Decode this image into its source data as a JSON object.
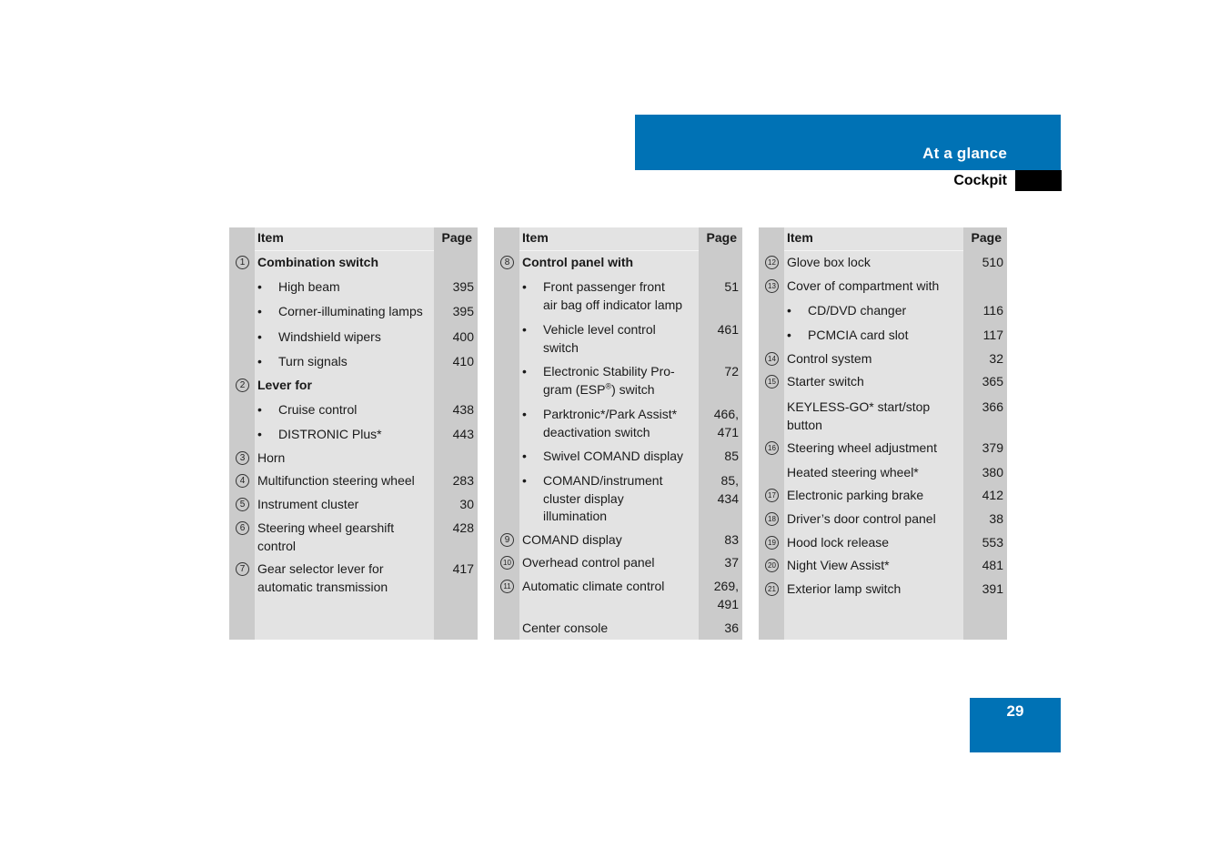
{
  "header": {
    "section": "At a glance",
    "subsection": "Cockpit"
  },
  "page_number": "29",
  "column_headers": {
    "item": "Item",
    "page": "Page"
  },
  "tables": [
    {
      "rows": [
        {
          "num": "1",
          "label": "Combination switch",
          "page": "",
          "bold": true
        },
        {
          "bullet": true,
          "label": "High beam",
          "page": "395"
        },
        {
          "bullet": true,
          "label": "Corner-illuminating lamps",
          "page": "395"
        },
        {
          "bullet": true,
          "label": "Windshield wipers",
          "page": "400"
        },
        {
          "bullet": true,
          "label": "Turn signals",
          "page": "410"
        },
        {
          "num": "2",
          "label": "Lever for",
          "page": "",
          "bold": true
        },
        {
          "bullet": true,
          "label": "Cruise control",
          "page": "438"
        },
        {
          "bullet": true,
          "label": "DISTRONIC Plus*",
          "page": "443"
        },
        {
          "num": "3",
          "label": "Horn",
          "page": ""
        },
        {
          "num": "4",
          "label": "Multifunction steering wheel",
          "page": "283"
        },
        {
          "num": "5",
          "label": "Instrument cluster",
          "page": "30"
        },
        {
          "num": "6",
          "label": "Steering wheel gearshift\ncontrol",
          "page": "428"
        },
        {
          "num": "7",
          "label": "Gear selector lever for\nautomatic transmission",
          "page": "417"
        }
      ]
    },
    {
      "rows": [
        {
          "num": "8",
          "label": "Control panel with",
          "page": "",
          "bold": true
        },
        {
          "bullet": true,
          "label": "Front passenger front\nair bag off indicator lamp",
          "page": "51"
        },
        {
          "bullet": true,
          "label": "Vehicle level control\nswitch",
          "page": "461"
        },
        {
          "bullet": true,
          "label": "Electronic Stability Pro-\ngram (ESP®) switch",
          "page": "72"
        },
        {
          "bullet": true,
          "label": "Parktronic*/Park Assist*\ndeactivation switch",
          "page": "466,\n471"
        },
        {
          "bullet": true,
          "label": "Swivel COMAND display",
          "page": "85"
        },
        {
          "bullet": true,
          "label": "COMAND/instrument\ncluster display\nillumination",
          "page": "85,\n434"
        },
        {
          "num": "9",
          "label": "COMAND display",
          "page": "83"
        },
        {
          "num": "10",
          "label": "Overhead control panel",
          "page": "37"
        },
        {
          "num": "11",
          "label": "Automatic climate control",
          "page": "269,\n491"
        },
        {
          "label": "Center console",
          "page": "36"
        }
      ]
    },
    {
      "rows": [
        {
          "num": "12",
          "label": "Glove box lock",
          "page": "510"
        },
        {
          "num": "13",
          "label": "Cover of compartment with",
          "page": ""
        },
        {
          "bullet": true,
          "label": "CD/DVD changer",
          "page": "116"
        },
        {
          "bullet": true,
          "label": "PCMCIA card slot",
          "page": "117"
        },
        {
          "num": "14",
          "label": "Control system",
          "page": "32"
        },
        {
          "num": "15",
          "label": "Starter switch",
          "page": "365"
        },
        {
          "label": "KEYLESS-GO* start/stop\nbutton",
          "page": "366"
        },
        {
          "num": "16",
          "label": "Steering wheel adjustment",
          "page": "379"
        },
        {
          "label": "Heated steering wheel*",
          "page": "380"
        },
        {
          "num": "17",
          "label": "Electronic parking brake",
          "page": "412"
        },
        {
          "num": "18",
          "label": "Driver’s door control panel",
          "page": "38"
        },
        {
          "num": "19",
          "label": "Hood lock release",
          "page": "553"
        },
        {
          "num": "20",
          "label": "Night View Assist*",
          "page": "481"
        },
        {
          "num": "21",
          "label": "Exterior lamp switch",
          "page": "391"
        }
      ]
    }
  ]
}
